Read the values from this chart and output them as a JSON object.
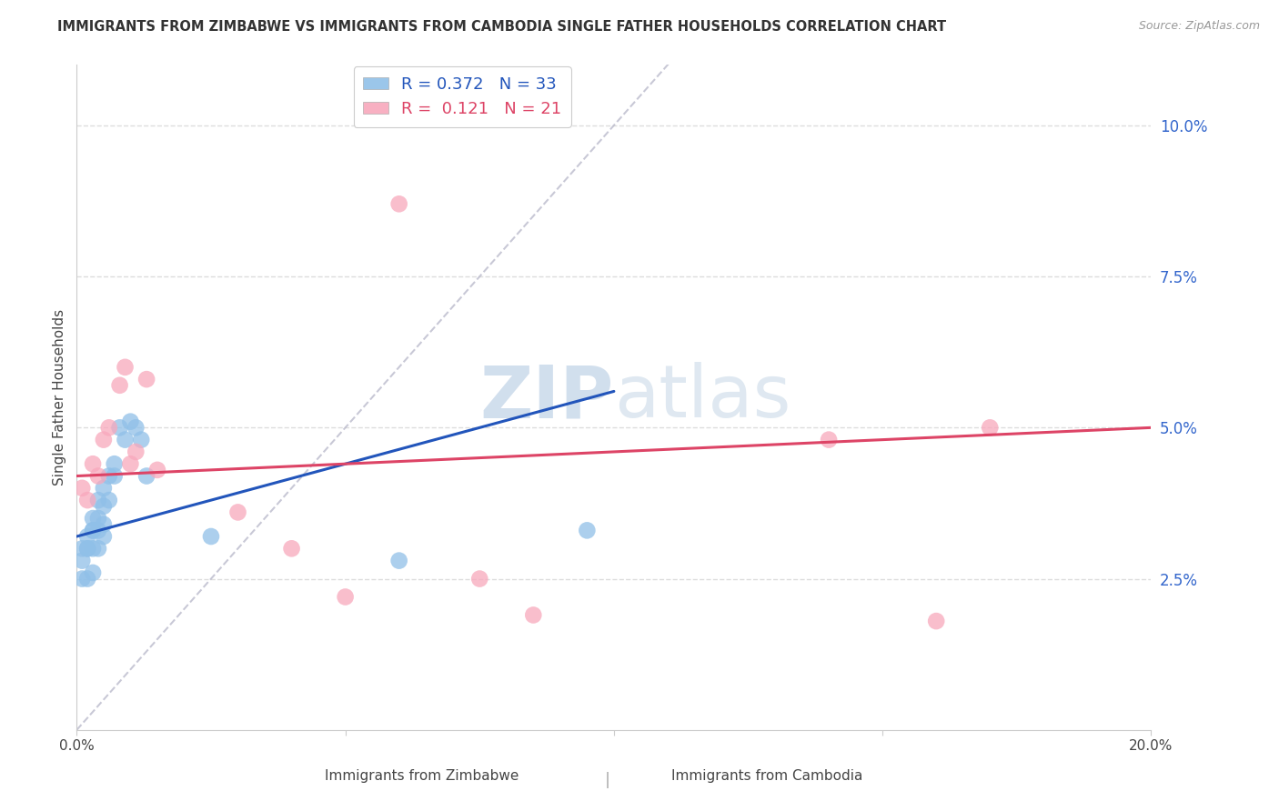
{
  "title": "IMMIGRANTS FROM ZIMBABWE VS IMMIGRANTS FROM CAMBODIA SINGLE FATHER HOUSEHOLDS CORRELATION CHART",
  "source": "Source: ZipAtlas.com",
  "ylabel": "Single Father Households",
  "xlabel_zimbabwe": "Immigrants from Zimbabwe",
  "xlabel_cambodia": "Immigrants from Cambodia",
  "xlim": [
    0.0,
    0.2
  ],
  "ylim": [
    0.0,
    0.11
  ],
  "yticks_right": [
    0.025,
    0.05,
    0.075,
    0.1
  ],
  "ytick_labels_right": [
    "2.5%",
    "5.0%",
    "7.5%",
    "10.0%"
  ],
  "R_zimbabwe": 0.372,
  "N_zimbabwe": 33,
  "R_cambodia": 0.121,
  "N_cambodia": 21,
  "color_zimbabwe": "#90C0E8",
  "color_cambodia": "#F8A8BC",
  "color_trend_zimbabwe": "#2255BB",
  "color_trend_cambodia": "#DD4466",
  "color_diagonal": "#BBBBCC",
  "color_axis_labels": "#3366CC",
  "watermark_color": "#D0DFF0",
  "background_color": "#FFFFFF",
  "grid_color": "#DDDDDD",
  "zimbabwe_x": [
    0.001,
    0.001,
    0.001,
    0.002,
    0.002,
    0.002,
    0.002,
    0.003,
    0.003,
    0.003,
    0.003,
    0.003,
    0.004,
    0.004,
    0.004,
    0.004,
    0.005,
    0.005,
    0.005,
    0.005,
    0.006,
    0.006,
    0.007,
    0.007,
    0.008,
    0.009,
    0.01,
    0.011,
    0.012,
    0.013,
    0.025,
    0.06,
    0.095
  ],
  "zimbabwe_y": [
    0.025,
    0.028,
    0.03,
    0.03,
    0.032,
    0.03,
    0.025,
    0.033,
    0.035,
    0.033,
    0.03,
    0.026,
    0.038,
    0.035,
    0.033,
    0.03,
    0.04,
    0.037,
    0.034,
    0.032,
    0.042,
    0.038,
    0.044,
    0.042,
    0.05,
    0.048,
    0.051,
    0.05,
    0.048,
    0.042,
    0.032,
    0.028,
    0.033
  ],
  "cambodia_x": [
    0.001,
    0.002,
    0.003,
    0.004,
    0.005,
    0.006,
    0.008,
    0.009,
    0.01,
    0.011,
    0.013,
    0.015,
    0.03,
    0.04,
    0.05,
    0.06,
    0.075,
    0.085,
    0.14,
    0.16,
    0.17
  ],
  "cambodia_y": [
    0.04,
    0.038,
    0.044,
    0.042,
    0.048,
    0.05,
    0.057,
    0.06,
    0.044,
    0.046,
    0.058,
    0.043,
    0.036,
    0.03,
    0.022,
    0.087,
    0.025,
    0.019,
    0.048,
    0.018,
    0.05
  ],
  "trend_zim_x0": 0.0,
  "trend_zim_y0": 0.032,
  "trend_zim_x1": 0.1,
  "trend_zim_y1": 0.056,
  "trend_cam_x0": 0.0,
  "trend_cam_y0": 0.042,
  "trend_cam_x1": 0.2,
  "trend_cam_y1": 0.05
}
